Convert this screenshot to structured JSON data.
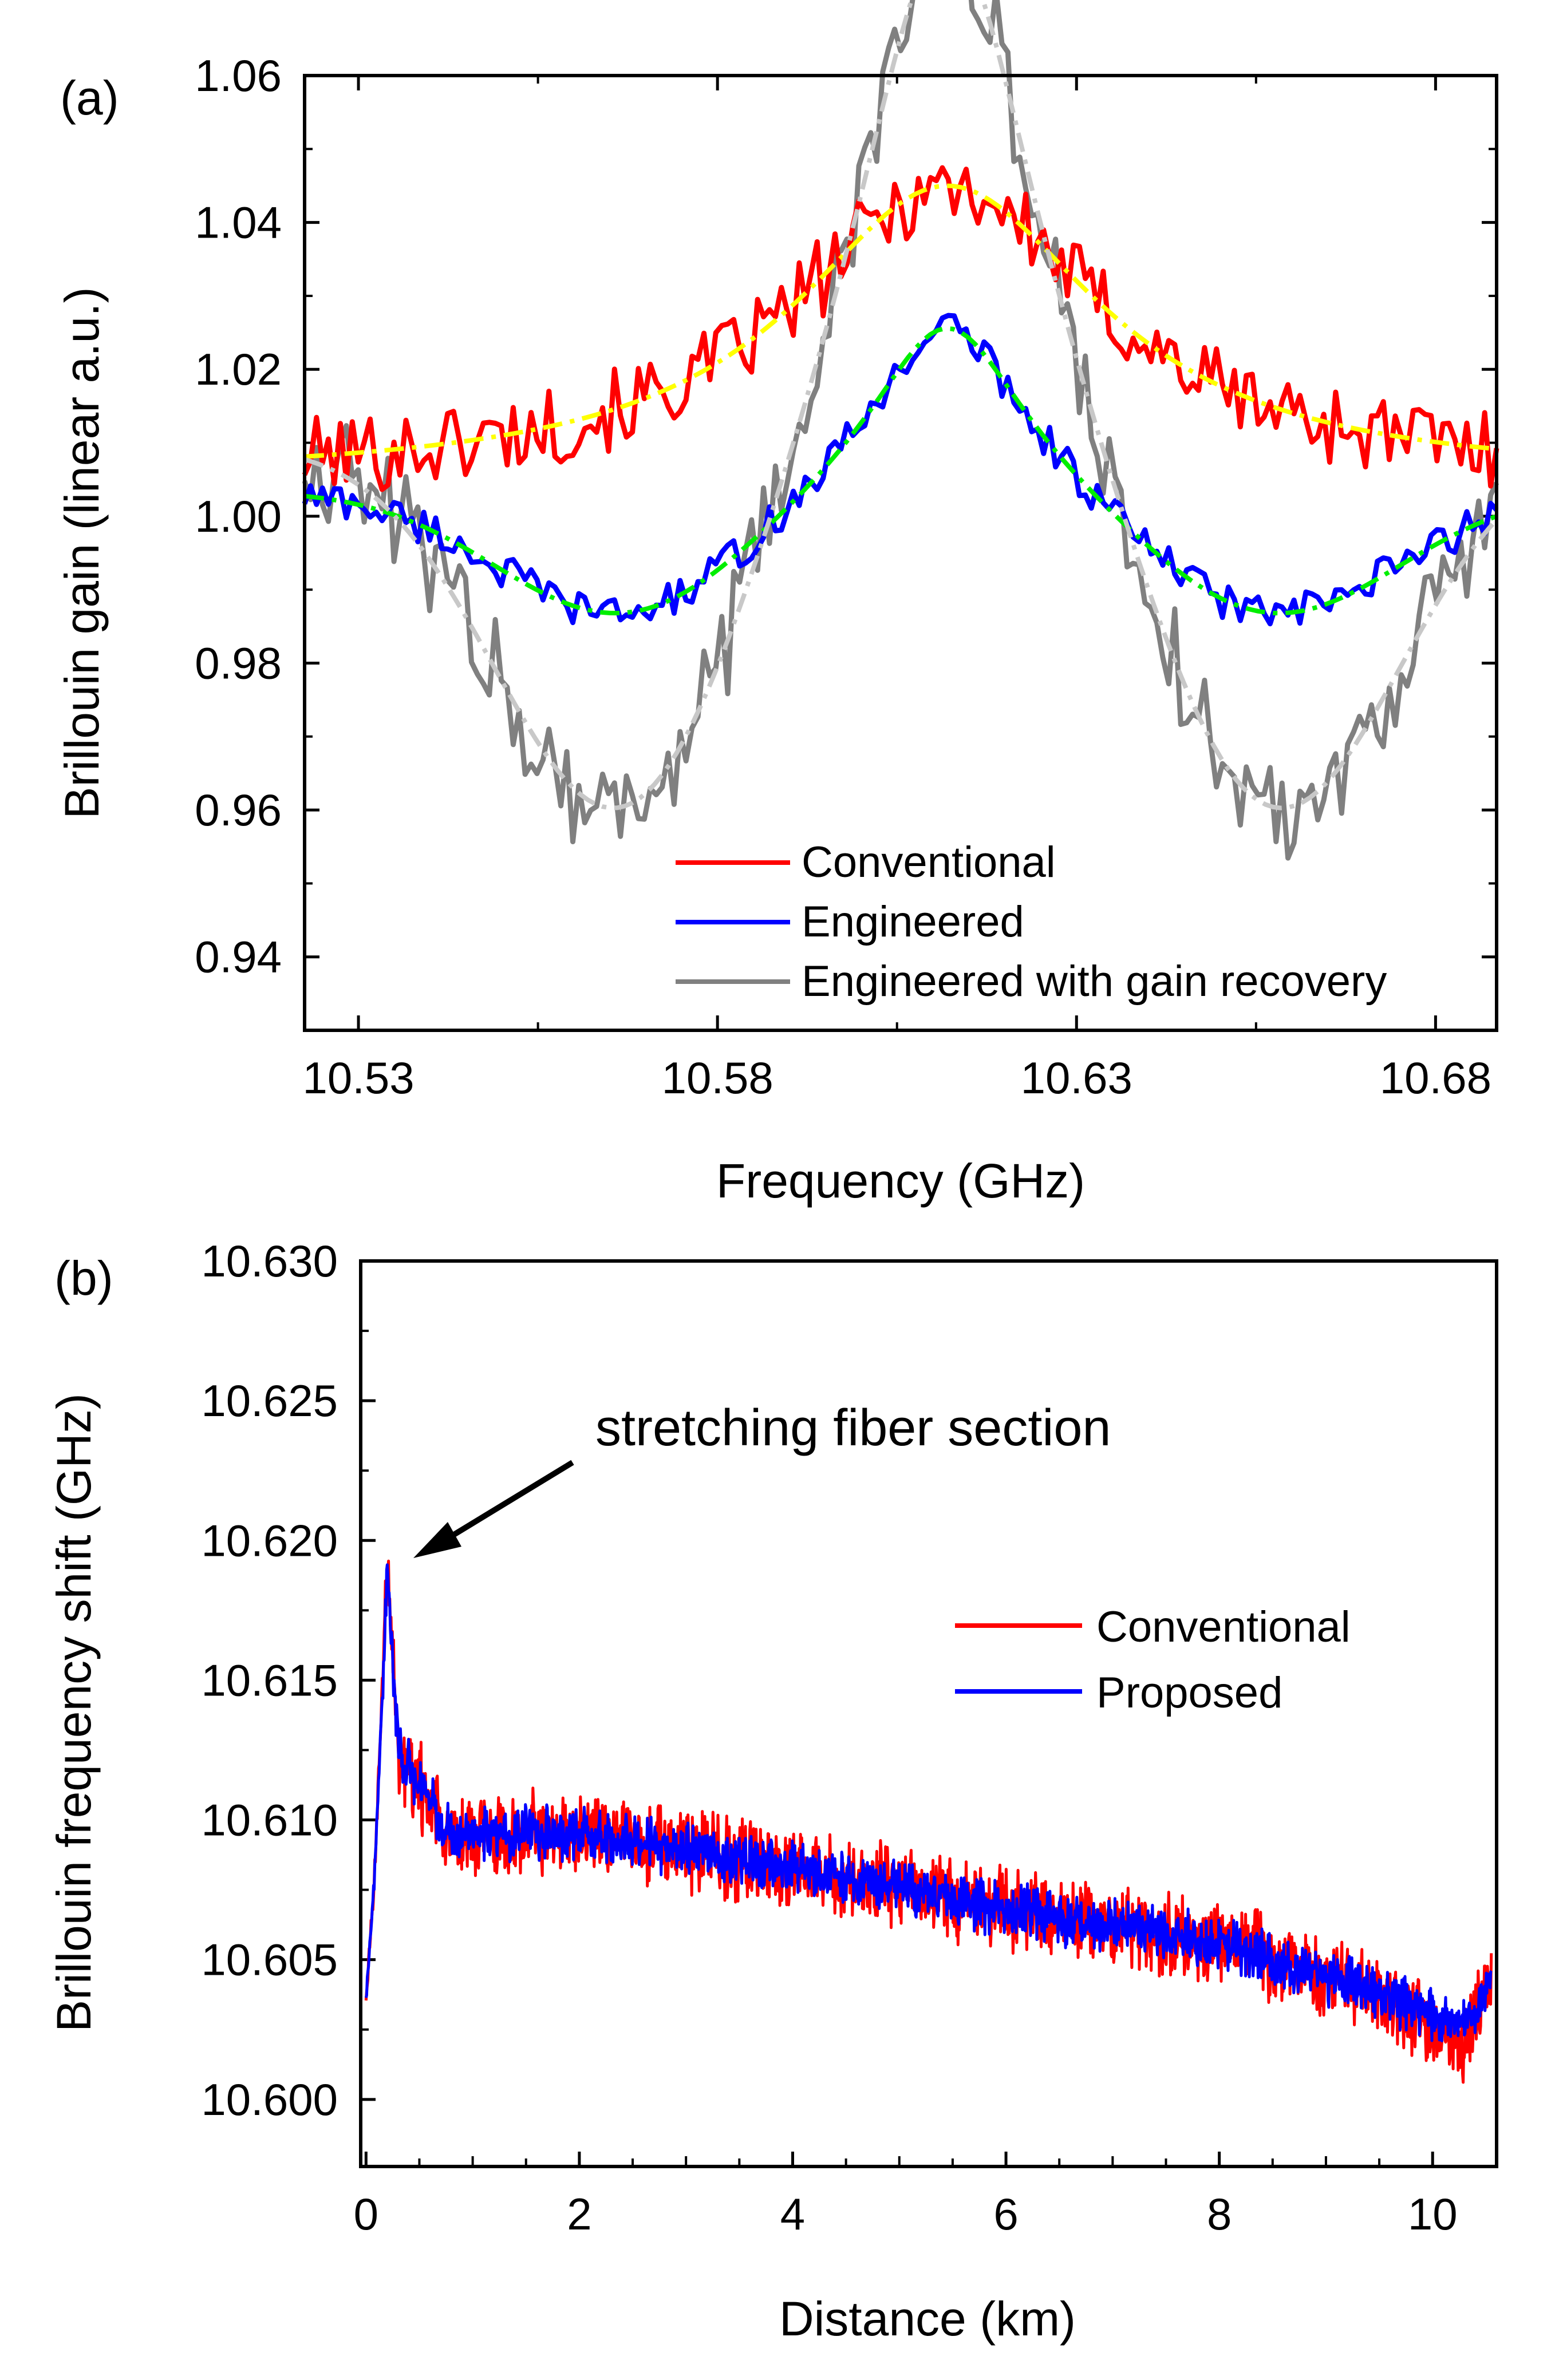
{
  "chart_data": [
    {
      "panel_label": "(a)",
      "type": "line",
      "xlabel": "Frequency (GHz)",
      "ylabel": "Brillouin gain (linear a.u.)",
      "xlim": [
        10.5225,
        10.6885
      ],
      "ylim": [
        0.93,
        1.06
      ],
      "xticks": [
        "10.53",
        "10.58",
        "10.63",
        "10.68"
      ],
      "yticks": [
        "0.94",
        "0.96",
        "0.98",
        "1.00",
        "1.02",
        "1.04",
        "1.06"
      ],
      "legend_position": "bottom-right",
      "series": [
        {
          "name": "Conventional",
          "style": "solid",
          "color": "#ff0000",
          "profile": {
            "baseline": 1.005,
            "amplitude": 0.04,
            "center": 10.612,
            "width": 0.026,
            "depth": 0,
            "dip_offset": 0,
            "dip_width": 0.03,
            "noise": 0.0055
          }
        },
        {
          "name": "Engineered",
          "style": "solid",
          "color": "#0000ff",
          "profile": {
            "baseline": 1.003,
            "amplitude": 0.024,
            "center": 10.612,
            "width": 0.013,
            "depth": 0.018,
            "dip_offset": 0.045,
            "dip_width": 0.025,
            "noise": 0.0025
          }
        },
        {
          "name": "Engineered with gain recovery",
          "style": "solid",
          "color": "#808080",
          "profile": {
            "baseline": 1.008,
            "amplitude": 0.075,
            "center": 10.612,
            "width": 0.015,
            "depth": 0.055,
            "dip_offset": 0.045,
            "dip_width": 0.025,
            "noise": 0.0075
          }
        },
        {
          "name": "Conventional fit",
          "style": "dash-dot",
          "color": "#ffff00",
          "profile": {
            "baseline": 1.005,
            "amplitude": 0.04,
            "center": 10.612,
            "width": 0.026,
            "depth": 0,
            "dip_offset": 0,
            "dip_width": 0.03,
            "noise": 0
          }
        },
        {
          "name": "Engineered fit",
          "style": "dash-dot",
          "color": "#00ee00",
          "profile": {
            "baseline": 1.003,
            "amplitude": 0.024,
            "center": 10.612,
            "width": 0.013,
            "depth": 0.018,
            "dip_offset": 0.045,
            "dip_width": 0.025,
            "noise": 0
          }
        },
        {
          "name": "Engineered with gain recovery fit",
          "style": "dash-dot",
          "color": "#c8c8c8",
          "profile": {
            "baseline": 1.008,
            "amplitude": 0.075,
            "center": 10.612,
            "width": 0.015,
            "depth": 0.055,
            "dip_offset": 0.045,
            "dip_width": 0.025,
            "noise": 0
          }
        }
      ],
      "legend_entries": [
        "Conventional",
        "Engineered",
        "Engineered with gain recovery"
      ]
    },
    {
      "panel_label": "(b)",
      "type": "line",
      "xlabel": "Distance (km)",
      "ylabel": "Brillouin frequency shift (GHz)",
      "xlim": [
        -0.05,
        10.6
      ],
      "ylim": [
        10.5976,
        10.63
      ],
      "xticks": [
        "0",
        "2",
        "4",
        "6",
        "8",
        "10"
      ],
      "yticks": [
        "10.600",
        "10.605",
        "10.610",
        "10.615",
        "10.620",
        "10.625",
        "10.630"
      ],
      "legend_position": "middle-right",
      "annotation": "stretching fiber section",
      "annotation_target": {
        "x": 0.2,
        "y": 10.6193
      },
      "series": [
        {
          "name": "Conventional",
          "color": "#ff0000",
          "trend": [
            [
              0.0,
              10.6035
            ],
            [
              0.08,
              10.608
            ],
            [
              0.2,
              10.6193
            ],
            [
              0.3,
              10.6125
            ],
            [
              0.45,
              10.6115
            ],
            [
              0.8,
              10.6095
            ],
            [
              2.0,
              10.6095
            ],
            [
              4.0,
              10.6083
            ],
            [
              6.0,
              10.6068
            ],
            [
              8.0,
              10.6056
            ],
            [
              9.5,
              10.6038
            ],
            [
              10.3,
              10.602
            ],
            [
              10.55,
              10.6045
            ]
          ],
          "noise": 0.0017
        },
        {
          "name": "Proposed",
          "color": "#0000ff",
          "trend": [
            [
              0.0,
              10.6035
            ],
            [
              0.08,
              10.608
            ],
            [
              0.2,
              10.6188
            ],
            [
              0.3,
              10.6125
            ],
            [
              0.45,
              10.6115
            ],
            [
              0.8,
              10.6095
            ],
            [
              2.0,
              10.6095
            ],
            [
              4.0,
              10.6083
            ],
            [
              6.0,
              10.6068
            ],
            [
              8.0,
              10.6056
            ],
            [
              9.5,
              10.6038
            ],
            [
              10.3,
              10.6025
            ],
            [
              10.55,
              10.6045
            ]
          ],
          "noise": 0.0011
        }
      ],
      "legend_entries": [
        "Conventional",
        "Proposed"
      ]
    }
  ]
}
